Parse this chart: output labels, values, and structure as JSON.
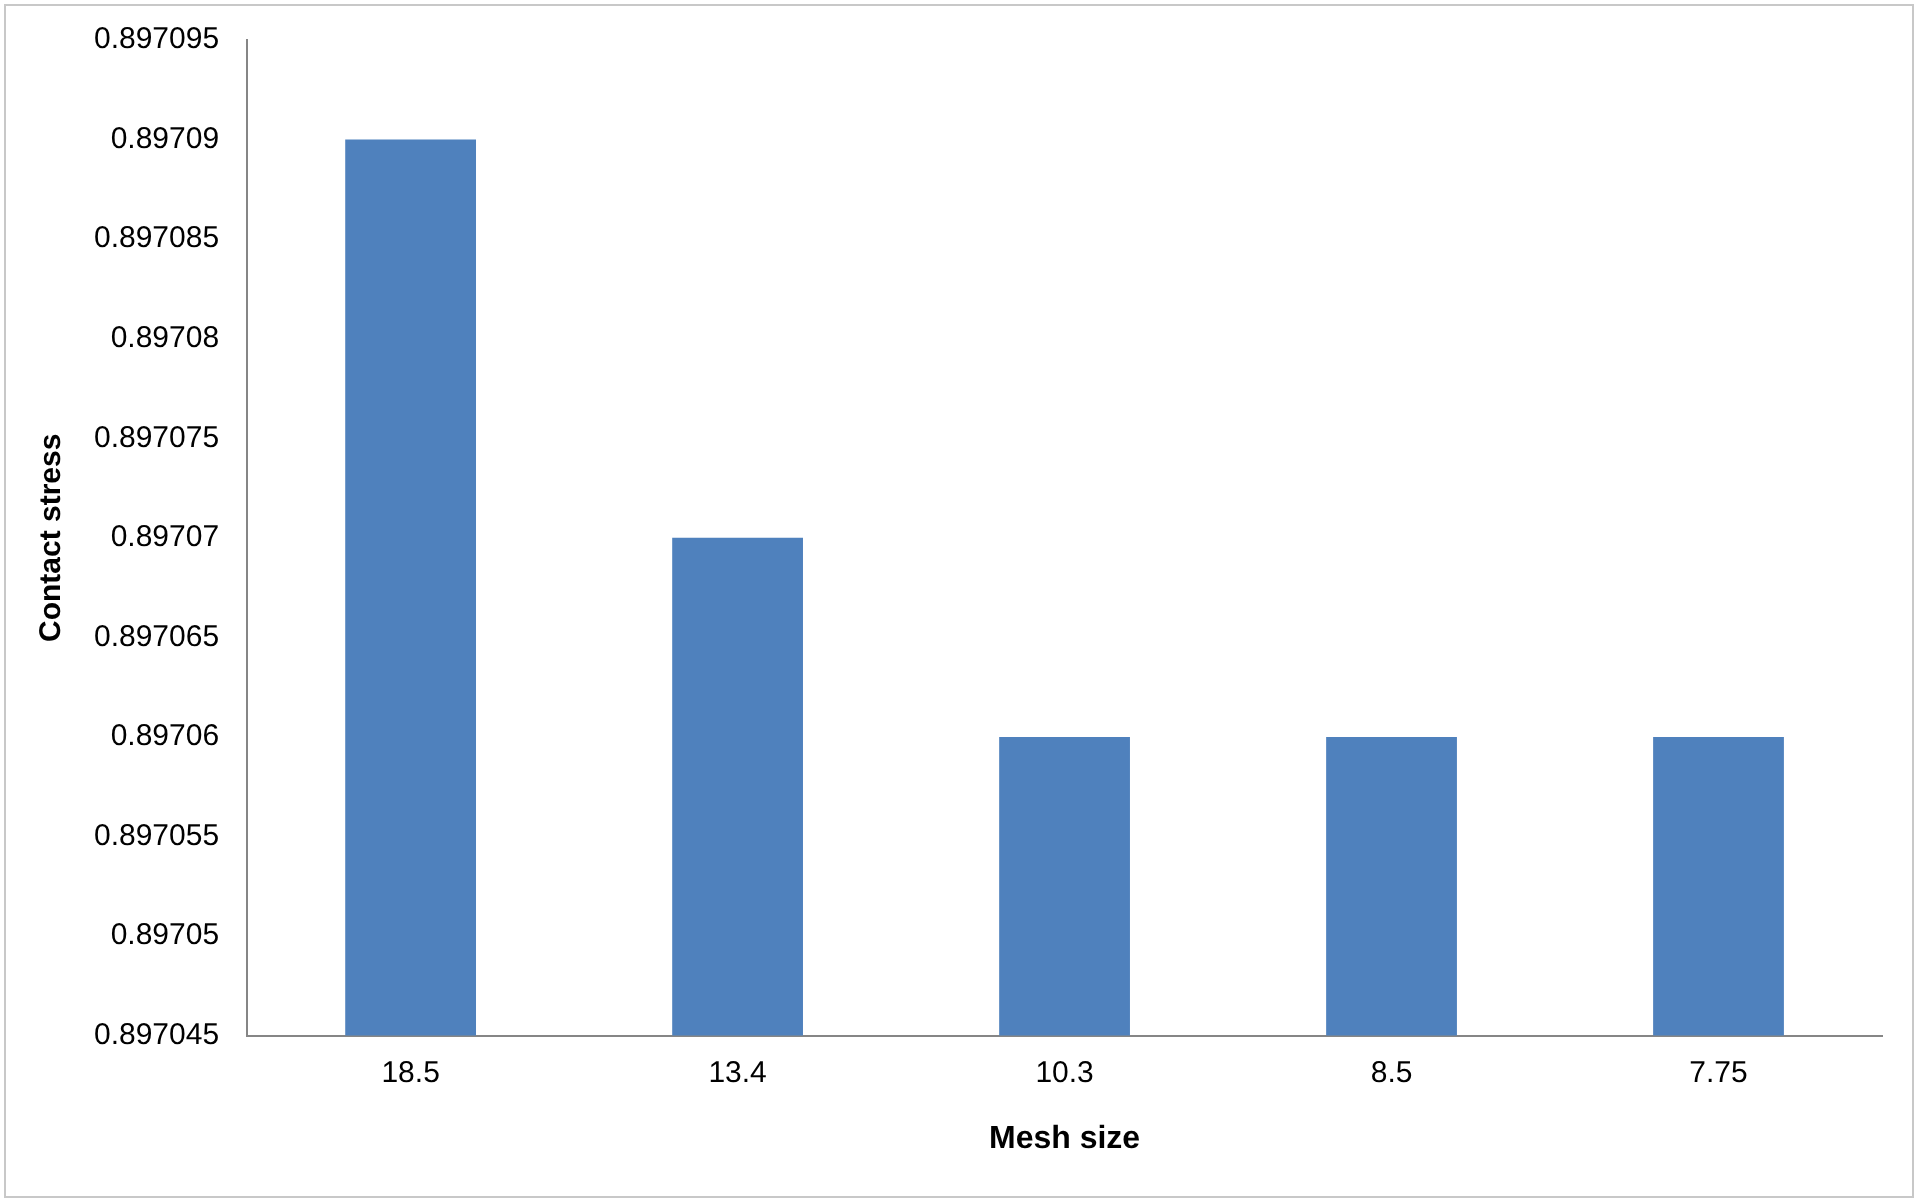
{
  "chart_data": {
    "type": "bar",
    "xlabel": "Mesh size",
    "ylabel": "Contact stress",
    "categories": [
      "18.5",
      "13.4",
      "10.3",
      "8.5",
      "7.75"
    ],
    "values": [
      0.89709,
      0.89707,
      0.89706,
      0.89706,
      0.89706
    ],
    "color": "#4f81bd",
    "ylim": [
      0.897045,
      0.897095
    ],
    "yticks": [
      0.897045,
      0.89705,
      0.897055,
      0.89706,
      0.897065,
      0.89707,
      0.897075,
      0.89708,
      0.897085,
      0.89709,
      0.897095
    ],
    "grid": false,
    "legend": false
  }
}
